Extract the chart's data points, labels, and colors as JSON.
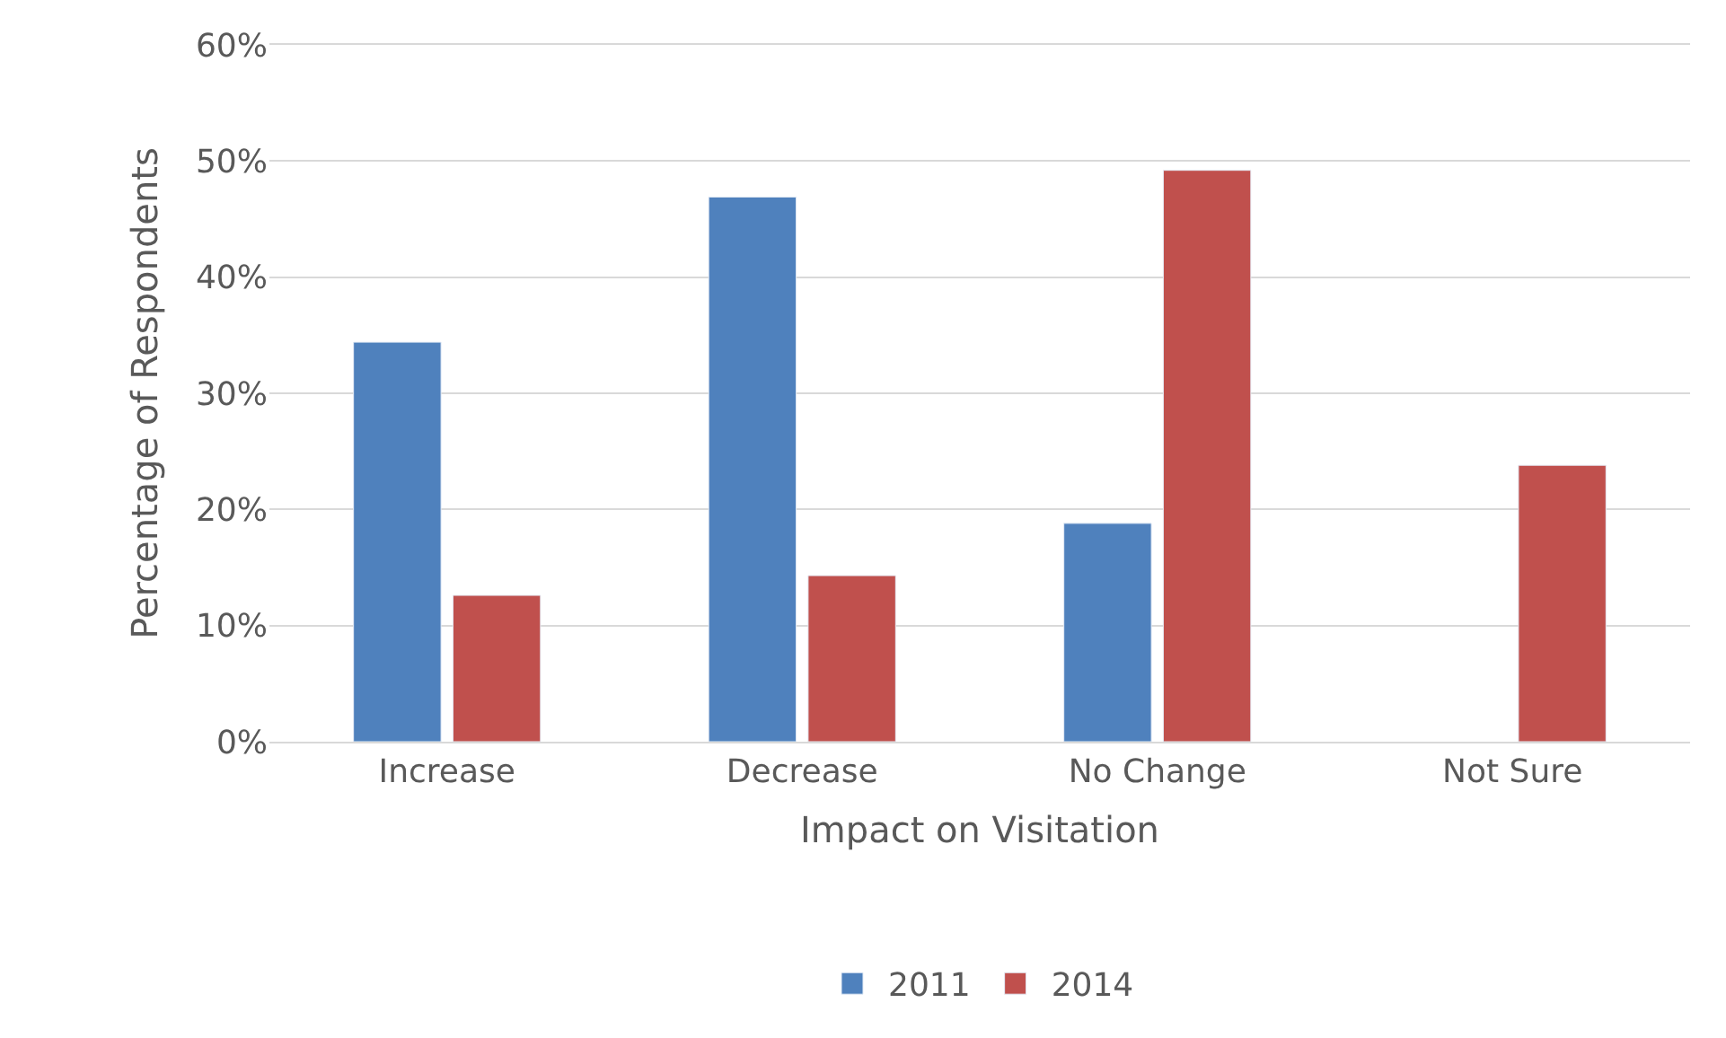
{
  "chart_data": {
    "type": "bar",
    "xlabel": "Impact on Visitation",
    "ylabel": "Percentage of Respondents",
    "categories": [
      "Increase",
      "Decrease",
      "No Change",
      "Not Sure"
    ],
    "series": [
      {
        "name": "2011",
        "color": "#4f81bd",
        "values": [
          34.4,
          46.9,
          18.8,
          null
        ]
      },
      {
        "name": "2014",
        "color": "#c0504d",
        "values": [
          12.6,
          14.3,
          49.2,
          23.8
        ]
      }
    ],
    "ylim": [
      0,
      60
    ],
    "yticks": [
      {
        "value": 0,
        "label": "0%"
      },
      {
        "value": 10,
        "label": "10%"
      },
      {
        "value": 20,
        "label": "20%"
      },
      {
        "value": 30,
        "label": "30%"
      },
      {
        "value": 40,
        "label": "40%"
      },
      {
        "value": 50,
        "label": "50%"
      },
      {
        "value": 60,
        "label": "60%"
      }
    ],
    "grid": "y",
    "legend": "bottom"
  }
}
